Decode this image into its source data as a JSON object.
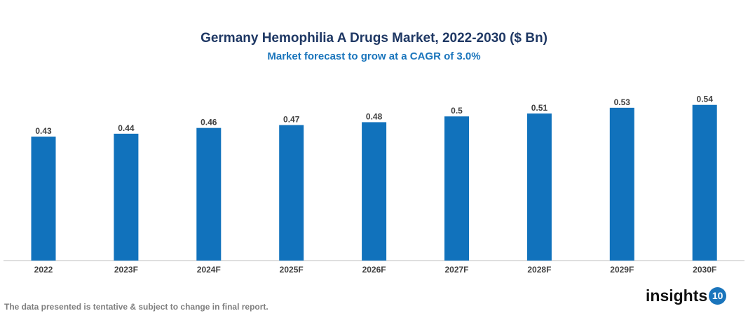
{
  "chart_data": {
    "type": "bar",
    "title": "Germany Hemophilia A Drugs Market, 2022-2030 ($ Bn)",
    "subtitle": "Market forecast to grow at a CAGR of 3.0%",
    "categories": [
      "2022",
      "2023F",
      "2024F",
      "2025F",
      "2026F",
      "2027F",
      "2028F",
      "2029F",
      "2030F"
    ],
    "values": [
      0.43,
      0.44,
      0.46,
      0.47,
      0.48,
      0.5,
      0.51,
      0.53,
      0.54
    ],
    "xlabel": "",
    "ylabel": "",
    "ylim": [
      0,
      0.6
    ],
    "grid": false,
    "bar_color": "#1172bc"
  },
  "footnote": "The data presented is tentative & subject to change in final report.",
  "logo": {
    "text": "insights",
    "badge": "10"
  }
}
